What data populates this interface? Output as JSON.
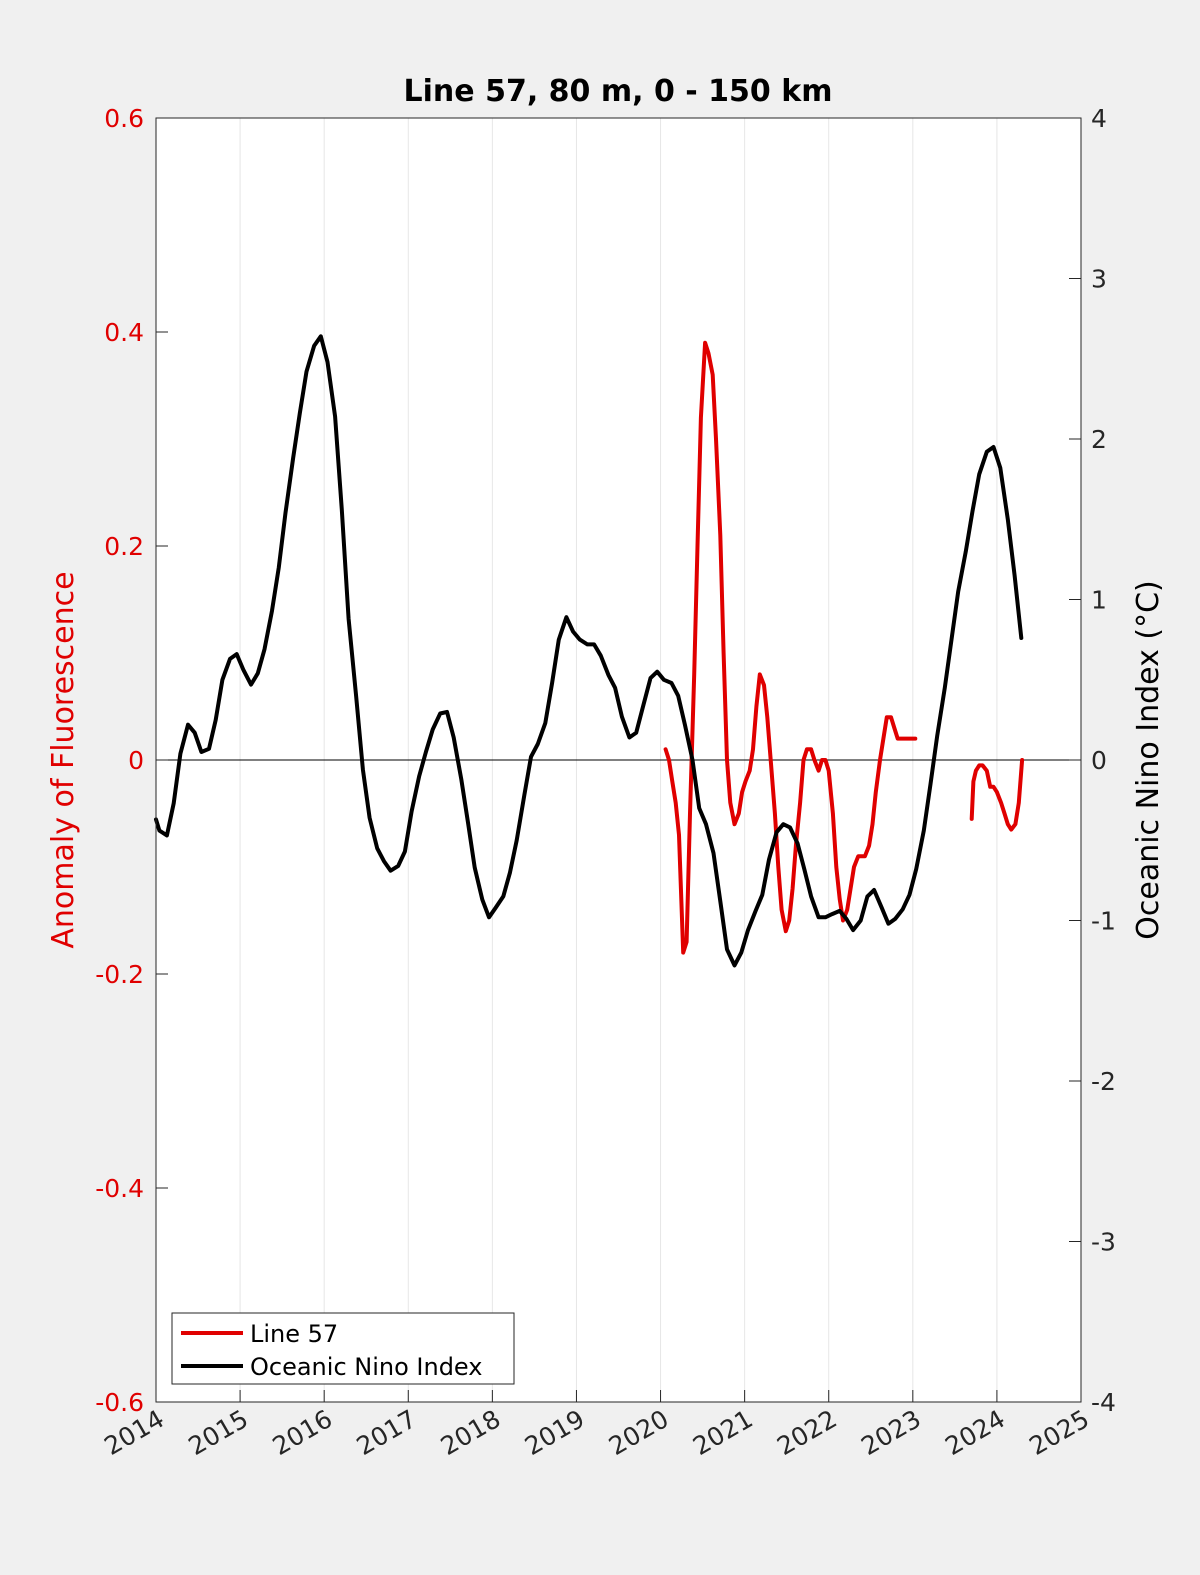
{
  "chart_data": {
    "type": "line",
    "title": "Line 57, 80 m, 0 - 150 km",
    "xlabel": "",
    "ylabel_left": "Anomaly of Fluorescence",
    "ylabel_right": "Oceanic Nino Index (°C)",
    "xlim": [
      2014,
      2025
    ],
    "ylim_left": [
      -0.6,
      0.6
    ],
    "ylim_right": [
      -4,
      4
    ],
    "x_ticks": [
      2014,
      2015,
      2016,
      2017,
      2018,
      2019,
      2020,
      2021,
      2022,
      2023,
      2024,
      2025
    ],
    "y_ticks_left": [
      "0.6",
      "0.4",
      "0.2",
      "0",
      "-0.2",
      "-0.4",
      "-0.6"
    ],
    "y_ticks_left_values": [
      0.6,
      0.4,
      0.2,
      0,
      -0.2,
      -0.4,
      -0.6
    ],
    "y_ticks_right": [
      "4",
      "3",
      "2",
      "1",
      "0",
      "-1",
      "-2",
      "-3",
      "-4"
    ],
    "y_ticks_right_values": [
      4,
      3,
      2,
      1,
      0,
      -1,
      -2,
      -3,
      -4
    ],
    "grid": "vertical",
    "zero_line": true,
    "legend_position": "bottom-left",
    "colors": {
      "line57": "#e00000",
      "oni": "#000000",
      "left_axis": "#e00000",
      "right_axis": "#262626"
    },
    "series": [
      {
        "name": "Line 57",
        "axis": "left",
        "color": "#e00000",
        "segments": [
          {
            "x": [
              2020.06,
              2020.1,
              2020.14,
              2020.18,
              2020.22,
              2020.27,
              2020.31,
              2020.35,
              2020.4,
              2020.44,
              2020.48,
              2020.53,
              2020.57,
              2020.62,
              2020.66,
              2020.71,
              2020.75,
              2020.79,
              2020.83,
              2020.88,
              2020.93,
              2020.97,
              2021.01,
              2021.06,
              2021.1,
              2021.14,
              2021.18,
              2021.23,
              2021.27,
              2021.31,
              2021.36,
              2021.4,
              2021.44,
              2021.49,
              2021.53,
              2021.57,
              2021.61,
              2021.66,
              2021.7,
              2021.74,
              2021.79,
              2021.83,
              2021.88,
              2021.92,
              2021.96,
              2022.0,
              2022.05,
              2022.09,
              2022.13,
              2022.17,
              2022.22,
              2022.26,
              2022.3,
              2022.35,
              2022.39,
              2022.43,
              2022.48,
              2022.52,
              2022.56,
              2022.61,
              2022.65,
              2022.69,
              2022.74,
              2022.78,
              2022.82,
              2022.87,
              2022.91,
              2022.95,
              2023.0,
              2023.03
            ],
            "y": [
              0.01,
              0.0,
              -0.02,
              -0.04,
              -0.07,
              -0.18,
              -0.17,
              -0.05,
              0.08,
              0.2,
              0.32,
              0.39,
              0.38,
              0.36,
              0.3,
              0.21,
              0.1,
              0.0,
              -0.04,
              -0.06,
              -0.05,
              -0.03,
              -0.02,
              -0.01,
              0.01,
              0.05,
              0.08,
              0.07,
              0.04,
              0.0,
              -0.05,
              -0.1,
              -0.14,
              -0.16,
              -0.15,
              -0.12,
              -0.08,
              -0.04,
              0.0,
              0.01,
              0.01,
              0.0,
              -0.01,
              0.0,
              0.0,
              -0.01,
              -0.05,
              -0.1,
              -0.13,
              -0.15,
              -0.14,
              -0.12,
              -0.1,
              -0.09,
              -0.09,
              -0.09,
              -0.08,
              -0.06,
              -0.03,
              0.0,
              0.02,
              0.04,
              0.04,
              0.03,
              0.02,
              0.02,
              0.02,
              0.02,
              0.02,
              0.02
            ]
          },
          {
            "x": [
              2023.7,
              2023.72,
              2023.75,
              2023.79,
              2023.83,
              2023.88,
              2023.92,
              2023.96,
              2024.0,
              2024.05,
              2024.09,
              2024.13,
              2024.17,
              2024.22,
              2024.26,
              2024.3
            ],
            "y": [
              -0.055,
              -0.02,
              -0.01,
              -0.005,
              -0.005,
              -0.01,
              -0.025,
              -0.025,
              -0.03,
              -0.04,
              -0.05,
              -0.06,
              -0.065,
              -0.06,
              -0.04,
              0.0
            ]
          }
        ]
      },
      {
        "name": "Oceanic Nino Index",
        "axis": "right",
        "color": "#000000",
        "segments": [
          {
            "x": [
              2014.0,
              2014.04,
              2014.13,
              2014.21,
              2014.29,
              2014.38,
              2014.46,
              2014.54,
              2014.63,
              2014.71,
              2014.79,
              2014.88,
              2014.96,
              2015.04,
              2015.13,
              2015.21,
              2015.29,
              2015.38,
              2015.46,
              2015.54,
              2015.63,
              2015.71,
              2015.79,
              2015.88,
              2015.96,
              2016.04,
              2016.13,
              2016.21,
              2016.29,
              2016.38,
              2016.46,
              2016.54,
              2016.63,
              2016.71,
              2016.79,
              2016.88,
              2016.96,
              2017.04,
              2017.13,
              2017.21,
              2017.29,
              2017.38,
              2017.46,
              2017.54,
              2017.63,
              2017.71,
              2017.79,
              2017.88,
              2017.96,
              2018.04,
              2018.13,
              2018.21,
              2018.29,
              2018.38,
              2018.46,
              2018.54,
              2018.63,
              2018.71,
              2018.79,
              2018.88,
              2018.96,
              2019.04,
              2019.13,
              2019.21,
              2019.29,
              2019.38,
              2019.46,
              2019.54,
              2019.63,
              2019.71,
              2019.79,
              2019.88,
              2019.96,
              2020.04,
              2020.13,
              2020.21,
              2020.29,
              2020.38,
              2020.46,
              2020.54,
              2020.63,
              2020.71,
              2020.79,
              2020.88,
              2020.96,
              2021.04,
              2021.13,
              2021.21,
              2021.29,
              2021.38,
              2021.46,
              2021.54,
              2021.63,
              2021.71,
              2021.79,
              2021.88,
              2021.96,
              2022.04,
              2022.13,
              2022.21,
              2022.29,
              2022.38,
              2022.46,
              2022.54,
              2022.63,
              2022.71,
              2022.79,
              2022.88,
              2022.96,
              2023.04,
              2023.13,
              2023.21,
              2023.29,
              2023.38,
              2023.46,
              2023.54,
              2023.63,
              2023.71,
              2023.79,
              2023.88,
              2023.96,
              2024.04,
              2024.13,
              2024.21,
              2024.29
            ],
            "y": [
              -0.37,
              -0.44,
              -0.47,
              -0.27,
              0.04,
              0.22,
              0.17,
              0.05,
              0.07,
              0.25,
              0.5,
              0.63,
              0.66,
              0.56,
              0.47,
              0.54,
              0.69,
              0.93,
              1.2,
              1.54,
              1.88,
              2.16,
              2.42,
              2.58,
              2.64,
              2.48,
              2.14,
              1.56,
              0.88,
              0.4,
              -0.06,
              -0.36,
              -0.55,
              -0.63,
              -0.69,
              -0.66,
              -0.57,
              -0.32,
              -0.1,
              0.05,
              0.19,
              0.29,
              0.3,
              0.14,
              -0.12,
              -0.39,
              -0.67,
              -0.87,
              -0.98,
              -0.92,
              -0.85,
              -0.7,
              -0.5,
              -0.22,
              0.02,
              0.1,
              0.23,
              0.48,
              0.75,
              0.89,
              0.8,
              0.75,
              0.72,
              0.72,
              0.65,
              0.53,
              0.45,
              0.27,
              0.14,
              0.17,
              0.33,
              0.51,
              0.55,
              0.5,
              0.48,
              0.4,
              0.22,
              0.0,
              -0.3,
              -0.4,
              -0.58,
              -0.88,
              -1.18,
              -1.28,
              -1.2,
              -1.06,
              -0.94,
              -0.84,
              -0.62,
              -0.45,
              -0.4,
              -0.42,
              -0.52,
              -0.68,
              -0.85,
              -0.98,
              -0.98,
              -0.96,
              -0.94,
              -0.99,
              -1.06,
              -1.0,
              -0.85,
              -0.81,
              -0.92,
              -1.02,
              -0.99,
              -0.93,
              -0.84,
              -0.68,
              -0.44,
              -0.15,
              0.15,
              0.45,
              0.75,
              1.05,
              1.3,
              1.55,
              1.78,
              1.92,
              1.95,
              1.82,
              1.5,
              1.15,
              0.76
            ]
          }
        ]
      }
    ]
  }
}
